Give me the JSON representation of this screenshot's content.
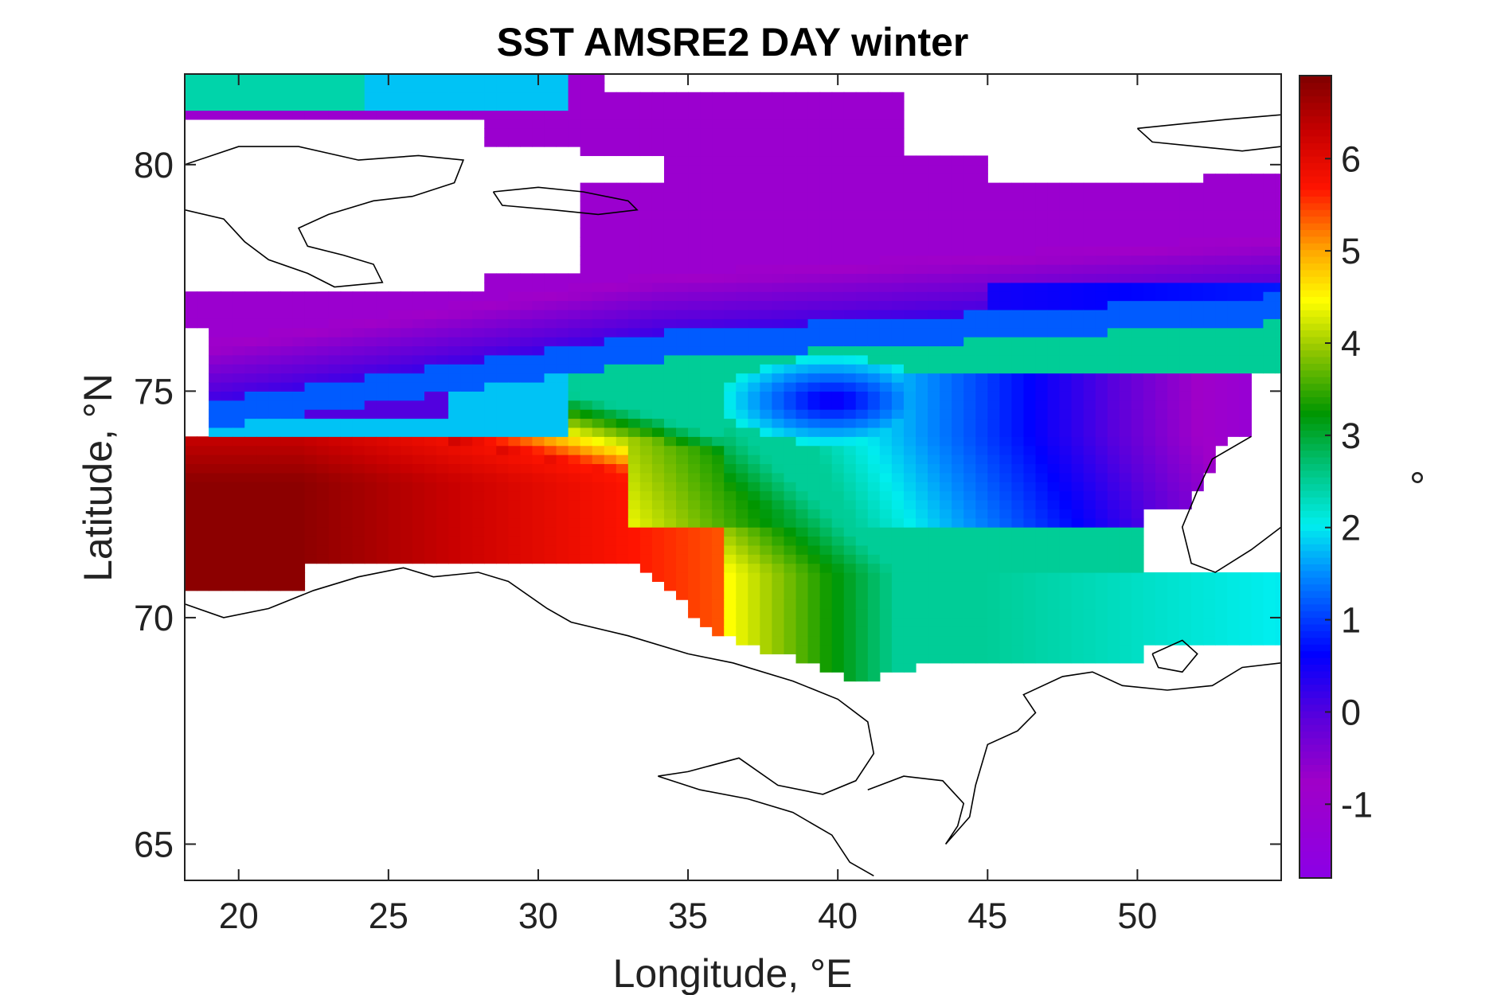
{
  "chart_data": {
    "type": "heatmap",
    "title": "SST AMSRE2 DAY winter",
    "xlabel": "Longitude, °E",
    "ylabel": "Latitude, °N",
    "xlim": [
      18.2,
      54.8
    ],
    "ylim": [
      64.2,
      82.0
    ],
    "xticks": [
      20,
      25,
      30,
      35,
      40,
      45,
      50
    ],
    "yticks": [
      65,
      70,
      75,
      80
    ],
    "colorbar": {
      "label": "°",
      "range": [
        -1.8,
        6.9
      ],
      "ticks": [
        -1,
        0,
        1,
        2,
        3,
        4,
        5,
        6
      ],
      "tick_labels": [
        "-1",
        "0",
        "1",
        "2",
        "3",
        "4",
        "5",
        "6"
      ],
      "colormap": "jet-like (violet to dark red)"
    },
    "field_summary": {
      "grid_resolution_deg": [
        0.4,
        0.2
      ],
      "warm_core": {
        "lon_range": [
          18.2,
          28
        ],
        "lat_range": [
          70.6,
          74
        ],
        "value_max": 6.8
      },
      "polar_front_lat_at_lon20": 74.6,
      "northern_basin_value": -1.0,
      "cold_eddy_center": {
        "lon": 39.8,
        "lat": 74.8,
        "value": 0.4
      },
      "southeast_shelf_value": 2.5
    },
    "grid": false,
    "legend": "none"
  }
}
